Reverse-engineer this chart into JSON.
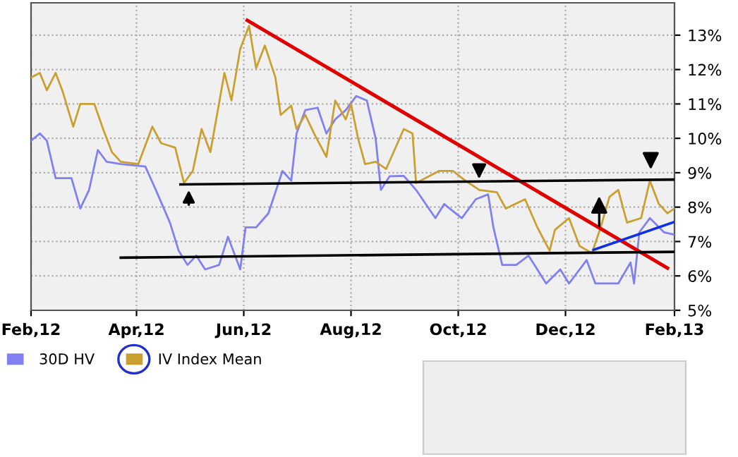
{
  "chart_data": {
    "type": "line",
    "legend": "bottom",
    "grid": true,
    "tick_labels": "xy",
    "xlim": [
      "2012-02-01",
      "2013-02-01"
    ],
    "xticks": [
      {
        "value": "2012-02-01",
        "label": "Feb,12"
      },
      {
        "value": "2012-04-01",
        "label": "Apr,12"
      },
      {
        "value": "2012-06-01",
        "label": "Jun,12"
      },
      {
        "value": "2012-08-01",
        "label": "Aug,12"
      },
      {
        "value": "2012-10-01",
        "label": "Oct,12"
      },
      {
        "value": "2012-12-01",
        "label": "Dec,12"
      },
      {
        "value": "2013-02-01",
        "label": "Feb,13"
      }
    ],
    "ylim": [
      5,
      13.94
    ],
    "yticks": [
      {
        "value": 5,
        "label": "5%"
      },
      {
        "value": 6,
        "label": "6%"
      },
      {
        "value": 7,
        "label": "7%"
      },
      {
        "value": 8,
        "label": "8%"
      },
      {
        "value": 9,
        "label": "9%"
      },
      {
        "value": 10,
        "label": "10%"
      },
      {
        "value": 11,
        "label": "11%"
      },
      {
        "value": 12,
        "label": "12%"
      },
      {
        "value": 13,
        "label": "13%"
      }
    ],
    "series": [
      {
        "name": "30D HV",
        "color": "#8080f0",
        "x": [
          "2012-02-01",
          "2012-02-06",
          "2012-02-10",
          "2012-02-15",
          "2012-02-19",
          "2012-02-24",
          "2012-02-29",
          "2012-03-05",
          "2012-03-10",
          "2012-03-15",
          "2012-03-23",
          "2012-04-06",
          "2012-04-12",
          "2012-04-20",
          "2012-04-25",
          "2012-04-30",
          "2012-05-05",
          "2012-05-10",
          "2012-05-18",
          "2012-05-23",
          "2012-05-30",
          "2012-06-02",
          "2012-06-08",
          "2012-06-15",
          "2012-06-23",
          "2012-06-28",
          "2012-07-01",
          "2012-07-06",
          "2012-07-13",
          "2012-07-18",
          "2012-07-23",
          "2012-07-29",
          "2012-08-04",
          "2012-08-10",
          "2012-08-15",
          "2012-08-18",
          "2012-08-23",
          "2012-08-31",
          "2012-09-07",
          "2012-09-18",
          "2012-09-23",
          "2012-10-03",
          "2012-10-11",
          "2012-10-18",
          "2012-10-21",
          "2012-10-26",
          "2012-11-03",
          "2012-11-10",
          "2012-11-20",
          "2012-11-28",
          "2012-12-03",
          "2012-12-13",
          "2012-12-18",
          "2012-12-31",
          "2013-01-07",
          "2013-01-09",
          "2013-01-12",
          "2013-01-18",
          "2013-01-26",
          "2013-02-01"
        ],
        "values": [
          9.93,
          10.14,
          9.93,
          8.84,
          8.84,
          8.84,
          7.96,
          8.5,
          9.66,
          9.32,
          9.25,
          9.18,
          8.5,
          7.55,
          6.73,
          6.32,
          6.59,
          6.19,
          6.32,
          7.14,
          6.19,
          7.41,
          7.41,
          7.82,
          9.05,
          8.77,
          10.14,
          10.82,
          10.89,
          10.14,
          10.55,
          10.82,
          11.23,
          11.1,
          10.0,
          8.5,
          8.9,
          8.91,
          8.5,
          7.68,
          8.09,
          7.68,
          8.23,
          8.37,
          7.41,
          6.32,
          6.32,
          6.59,
          5.78,
          6.19,
          5.78,
          6.46,
          5.78,
          5.78,
          6.39,
          5.78,
          7.27,
          7.68,
          7.27,
          7.2
        ]
      },
      {
        "name": "IV Index Mean",
        "color": "#c9a030",
        "x": [
          "2012-02-01",
          "2012-02-06",
          "2012-02-10",
          "2012-02-15",
          "2012-02-19",
          "2012-02-25",
          "2012-02-29",
          "2012-03-08",
          "2012-03-13",
          "2012-03-18",
          "2012-03-23",
          "2012-04-02",
          "2012-04-10",
          "2012-04-15",
          "2012-04-23",
          "2012-04-28",
          "2012-05-03",
          "2012-05-08",
          "2012-05-13",
          "2012-05-21",
          "2012-05-25",
          "2012-05-30",
          "2012-06-04",
          "2012-06-08",
          "2012-06-13",
          "2012-06-19",
          "2012-06-22",
          "2012-06-28",
          "2012-07-01",
          "2012-07-06",
          "2012-07-11",
          "2012-07-18",
          "2012-07-23",
          "2012-07-29",
          "2012-08-01",
          "2012-08-05",
          "2012-08-09",
          "2012-08-15",
          "2012-08-21",
          "2012-08-31",
          "2012-09-05",
          "2012-09-07",
          "2012-09-20",
          "2012-09-28",
          "2012-10-05",
          "2012-10-13",
          "2012-10-23",
          "2012-10-28",
          "2012-11-08",
          "2012-11-15",
          "2012-11-22",
          "2012-11-25",
          "2012-12-03",
          "2012-12-09",
          "2012-12-16",
          "2012-12-21",
          "2012-12-26",
          "2012-12-31",
          "2013-01-05",
          "2013-01-13",
          "2013-01-18",
          "2013-01-23",
          "2013-01-28",
          "2013-02-01"
        ],
        "values": [
          11.77,
          11.9,
          11.4,
          11.9,
          11.36,
          10.34,
          11.0,
          11.0,
          10.27,
          9.6,
          9.32,
          9.25,
          10.34,
          9.86,
          9.73,
          8.7,
          9.05,
          10.27,
          9.6,
          11.9,
          11.1,
          12.6,
          13.27,
          12.04,
          12.7,
          11.77,
          10.68,
          10.95,
          10.27,
          10.68,
          10.14,
          9.46,
          11.1,
          10.55,
          11.0,
          10.0,
          9.25,
          9.32,
          9.11,
          10.27,
          10.14,
          8.7,
          9.05,
          9.05,
          8.77,
          8.5,
          8.43,
          7.96,
          8.23,
          7.41,
          6.73,
          7.34,
          7.68,
          6.87,
          6.66,
          7.41,
          8.3,
          8.5,
          7.55,
          7.68,
          8.77,
          8.1,
          7.82,
          7.96
        ]
      },
      {
        "color": "#e00000",
        "x": [
          "2012-06-03",
          "2013-01-28"
        ],
        "values": [
          13.43,
          6.23
        ]
      },
      {
        "color": "#000000",
        "x": [
          "2012-04-26",
          "2013-02-01"
        ],
        "values": [
          8.66,
          8.8
        ]
      },
      {
        "color": "#000000",
        "x": [
          "2012-03-23",
          "2013-02-01"
        ],
        "values": [
          6.53,
          6.7
        ]
      },
      {
        "color": "#1030e0",
        "x": [
          "2012-12-17",
          "2013-02-01"
        ],
        "values": [
          6.76,
          7.57
        ]
      }
    ]
  }
}
